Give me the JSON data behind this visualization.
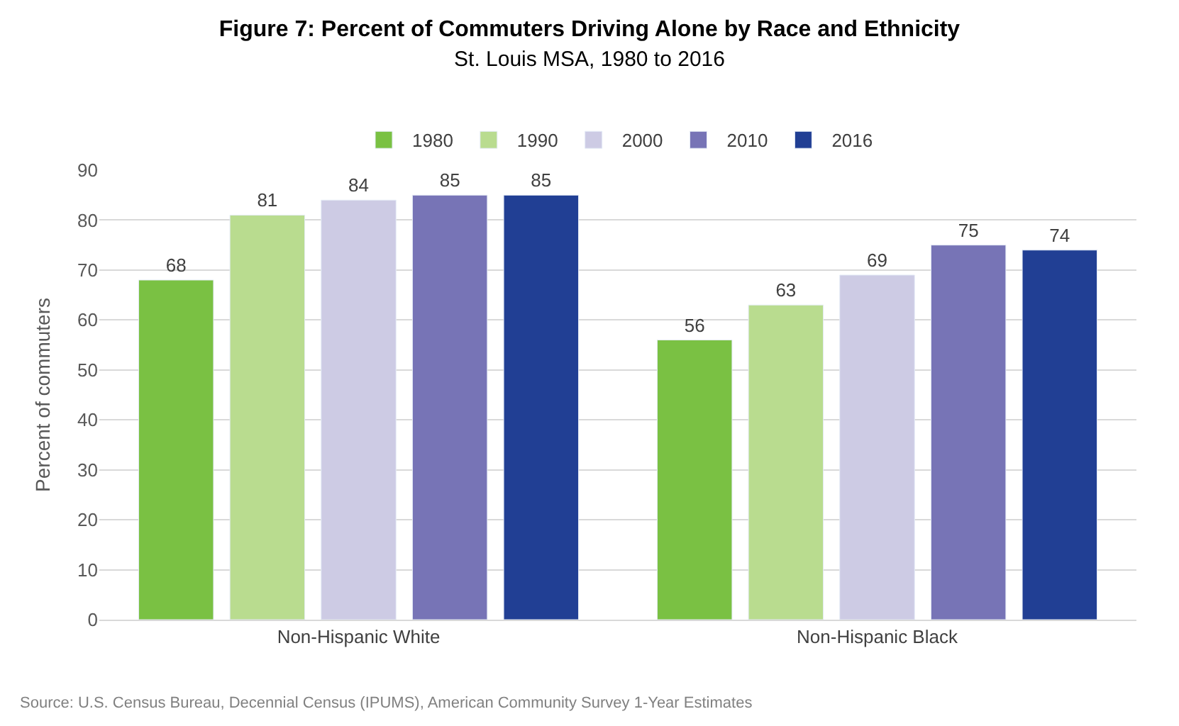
{
  "chart_data": {
    "type": "bar",
    "title": "Figure 7: Percent of Commuters Driving Alone by Race and Ethnicity",
    "subtitle": "St. Louis MSA, 1980 to 2016",
    "ylabel": "Percent of commuters",
    "categories": [
      "Non-Hispanic White",
      "Non-Hispanic Black"
    ],
    "series": [
      {
        "name": "1980",
        "color": "#7ac143",
        "values": [
          68,
          56
        ]
      },
      {
        "name": "1990",
        "color": "#b9dc8f",
        "values": [
          81,
          63
        ]
      },
      {
        "name": "2000",
        "color": "#cdcbe4",
        "values": [
          84,
          69
        ]
      },
      {
        "name": "2010",
        "color": "#7774b6",
        "values": [
          85,
          75
        ]
      },
      {
        "name": "2016",
        "color": "#213f94",
        "values": [
          85,
          74
        ]
      }
    ],
    "ylim": [
      0,
      90
    ],
    "yticks": [
      0,
      10,
      20,
      30,
      40,
      50,
      60,
      70,
      80,
      90
    ],
    "grid": "y",
    "legend": "top",
    "data_labels": true,
    "annotations": [
      "Source: U.S. Census Bureau, Decennial Census (IPUMS), American Community Survey 1-Year Estimates"
    ]
  }
}
